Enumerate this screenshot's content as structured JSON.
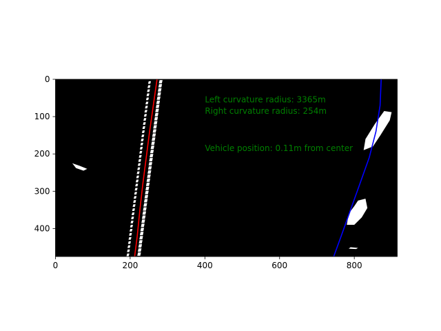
{
  "chart_data": {
    "type": "line",
    "title": "",
    "xlabel": "",
    "ylabel": "",
    "xlim": [
      0,
      915
    ],
    "ylim": [
      475,
      0
    ],
    "y_axis_inverted": true,
    "grid": false,
    "legend": "none",
    "background": "binary lane-pixel image (white pixels on black)",
    "x_ticks": [
      "0",
      "200",
      "400",
      "600",
      "800"
    ],
    "y_ticks": [
      "0",
      "100",
      "200",
      "300",
      "400"
    ],
    "series": [
      {
        "color": "#ff0000",
        "x": [
          272,
          262,
          252,
          243,
          234,
          226,
          219,
          212
        ],
        "y": [
          0,
          70,
          140,
          210,
          280,
          350,
          420,
          475
        ]
      },
      {
        "color": "#0000ff",
        "x": [
          872,
          869,
          858,
          840,
          815,
          790,
          765,
          745
        ],
        "y": [
          0,
          70,
          140,
          210,
          280,
          350,
          420,
          475
        ]
      }
    ],
    "annotations": [
      {
        "text": "Left curvature radius: 3365m",
        "x": 400,
        "y": 62,
        "color": "#008000"
      },
      {
        "text": " Right curvature radius: 254m",
        "x": 400,
        "y": 92,
        "color": "#008000"
      },
      {
        "text": "Vehicle position: 0.11m from center",
        "x": 400,
        "y": 192,
        "color": "#008000"
      }
    ]
  }
}
